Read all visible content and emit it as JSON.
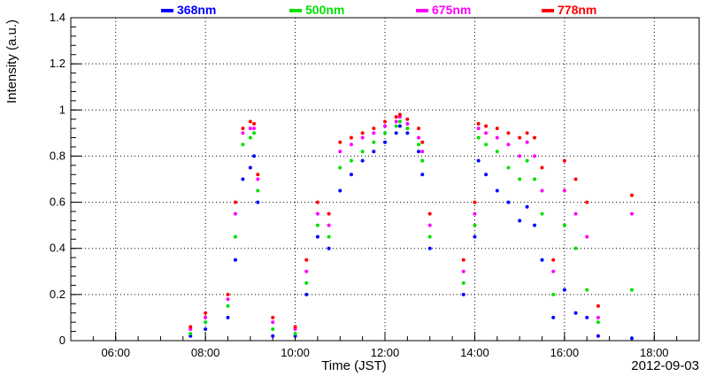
{
  "chart_data": {
    "type": "scatter",
    "xlabel": "Time (JST)",
    "ylabel": "Intensity (a.u.)",
    "date_label": "2012-09-03",
    "grid": true,
    "legend_position": "top",
    "xlim": [
      "05:00",
      "19:00"
    ],
    "ylim": [
      0,
      1.4
    ],
    "x_ticks": [
      "06:00",
      "08:00",
      "10:00",
      "12:00",
      "14:00",
      "16:00",
      "18:00"
    ],
    "y_ticks": [
      "0",
      "0.2",
      "0.4",
      "0.6",
      "0.8",
      "1",
      "1.2",
      "1.4"
    ],
    "series": [
      {
        "name": "368nm",
        "color": "#0000ff",
        "points": [
          [
            "07:40",
            0.02
          ],
          [
            "08:00",
            0.05
          ],
          [
            "08:30",
            0.1
          ],
          [
            "08:40",
            0.35
          ],
          [
            "08:50",
            0.7
          ],
          [
            "09:00",
            0.75
          ],
          [
            "09:05",
            0.8
          ],
          [
            "09:10",
            0.6
          ],
          [
            "09:30",
            0.02
          ],
          [
            "10:00",
            0.02
          ],
          [
            "10:15",
            0.2
          ],
          [
            "10:30",
            0.45
          ],
          [
            "10:45",
            0.4
          ],
          [
            "11:00",
            0.65
          ],
          [
            "11:15",
            0.72
          ],
          [
            "11:30",
            0.78
          ],
          [
            "11:45",
            0.82
          ],
          [
            "12:00",
            0.86
          ],
          [
            "12:15",
            0.9
          ],
          [
            "12:20",
            0.93
          ],
          [
            "12:30",
            0.9
          ],
          [
            "12:45",
            0.82
          ],
          [
            "12:50",
            0.72
          ],
          [
            "13:00",
            0.4
          ],
          [
            "13:45",
            0.2
          ],
          [
            "14:00",
            0.45
          ],
          [
            "14:05",
            0.78
          ],
          [
            "14:15",
            0.72
          ],
          [
            "14:30",
            0.65
          ],
          [
            "14:45",
            0.6
          ],
          [
            "15:00",
            0.52
          ],
          [
            "15:10",
            0.58
          ],
          [
            "15:20",
            0.5
          ],
          [
            "15:30",
            0.35
          ],
          [
            "15:45",
            0.1
          ],
          [
            "16:00",
            0.22
          ],
          [
            "16:15",
            0.12
          ],
          [
            "16:30",
            0.1
          ],
          [
            "16:45",
            0.02
          ],
          [
            "17:30",
            0.01
          ]
        ]
      },
      {
        "name": "500nm",
        "color": "#00e000",
        "points": [
          [
            "07:40",
            0.03
          ],
          [
            "08:00",
            0.08
          ],
          [
            "08:30",
            0.15
          ],
          [
            "08:40",
            0.45
          ],
          [
            "08:50",
            0.85
          ],
          [
            "09:00",
            0.88
          ],
          [
            "09:05",
            0.9
          ],
          [
            "09:10",
            0.65
          ],
          [
            "09:30",
            0.05
          ],
          [
            "10:00",
            0.03
          ],
          [
            "10:15",
            0.25
          ],
          [
            "10:30",
            0.5
          ],
          [
            "10:45",
            0.45
          ],
          [
            "11:00",
            0.75
          ],
          [
            "11:15",
            0.78
          ],
          [
            "11:30",
            0.82
          ],
          [
            "11:45",
            0.86
          ],
          [
            "12:00",
            0.9
          ],
          [
            "12:15",
            0.93
          ],
          [
            "12:20",
            0.95
          ],
          [
            "12:30",
            0.92
          ],
          [
            "12:45",
            0.85
          ],
          [
            "12:50",
            0.78
          ],
          [
            "13:00",
            0.45
          ],
          [
            "13:45",
            0.25
          ],
          [
            "14:00",
            0.5
          ],
          [
            "14:05",
            0.88
          ],
          [
            "14:15",
            0.85
          ],
          [
            "14:30",
            0.82
          ],
          [
            "14:45",
            0.75
          ],
          [
            "15:00",
            0.7
          ],
          [
            "15:10",
            0.78
          ],
          [
            "15:20",
            0.7
          ],
          [
            "15:30",
            0.55
          ],
          [
            "15:45",
            0.2
          ],
          [
            "16:00",
            0.5
          ],
          [
            "16:15",
            0.4
          ],
          [
            "16:30",
            0.22
          ],
          [
            "16:45",
            0.08
          ],
          [
            "17:30",
            0.22
          ]
        ]
      },
      {
        "name": "675nm",
        "color": "#ff00ff",
        "points": [
          [
            "07:40",
            0.05
          ],
          [
            "08:00",
            0.1
          ],
          [
            "08:30",
            0.18
          ],
          [
            "08:40",
            0.55
          ],
          [
            "08:50",
            0.9
          ],
          [
            "09:00",
            0.92
          ],
          [
            "09:05",
            0.92
          ],
          [
            "09:10",
            0.7
          ],
          [
            "09:30",
            0.08
          ],
          [
            "10:00",
            0.05
          ],
          [
            "10:15",
            0.3
          ],
          [
            "10:30",
            0.55
          ],
          [
            "10:45",
            0.5
          ],
          [
            "11:00",
            0.82
          ],
          [
            "11:15",
            0.85
          ],
          [
            "11:30",
            0.88
          ],
          [
            "11:45",
            0.9
          ],
          [
            "12:00",
            0.93
          ],
          [
            "12:15",
            0.95
          ],
          [
            "12:20",
            0.97
          ],
          [
            "12:30",
            0.94
          ],
          [
            "12:45",
            0.88
          ],
          [
            "12:50",
            0.82
          ],
          [
            "13:00",
            0.5
          ],
          [
            "13:45",
            0.3
          ],
          [
            "14:00",
            0.55
          ],
          [
            "14:05",
            0.92
          ],
          [
            "14:15",
            0.9
          ],
          [
            "14:30",
            0.88
          ],
          [
            "14:45",
            0.85
          ],
          [
            "15:00",
            0.8
          ],
          [
            "15:10",
            0.86
          ],
          [
            "15:20",
            0.8
          ],
          [
            "15:30",
            0.65
          ],
          [
            "15:45",
            0.3
          ],
          [
            "16:00",
            0.65
          ],
          [
            "16:15",
            0.55
          ],
          [
            "16:30",
            0.45
          ],
          [
            "16:45",
            0.1
          ],
          [
            "17:30",
            0.55
          ]
        ]
      },
      {
        "name": "778nm",
        "color": "#ff0000",
        "points": [
          [
            "07:40",
            0.06
          ],
          [
            "08:00",
            0.12
          ],
          [
            "08:30",
            0.2
          ],
          [
            "08:40",
            0.6
          ],
          [
            "08:50",
            0.92
          ],
          [
            "09:00",
            0.95
          ],
          [
            "09:05",
            0.94
          ],
          [
            "09:10",
            0.72
          ],
          [
            "09:30",
            0.1
          ],
          [
            "10:00",
            0.06
          ],
          [
            "10:15",
            0.35
          ],
          [
            "10:30",
            0.6
          ],
          [
            "10:45",
            0.55
          ],
          [
            "11:00",
            0.86
          ],
          [
            "11:15",
            0.88
          ],
          [
            "11:30",
            0.9
          ],
          [
            "11:45",
            0.92
          ],
          [
            "12:00",
            0.95
          ],
          [
            "12:15",
            0.97
          ],
          [
            "12:20",
            0.98
          ],
          [
            "12:30",
            0.96
          ],
          [
            "12:45",
            0.92
          ],
          [
            "12:50",
            0.86
          ],
          [
            "13:00",
            0.55
          ],
          [
            "13:45",
            0.35
          ],
          [
            "14:00",
            0.6
          ],
          [
            "14:05",
            0.94
          ],
          [
            "14:15",
            0.93
          ],
          [
            "14:30",
            0.92
          ],
          [
            "14:45",
            0.9
          ],
          [
            "15:00",
            0.88
          ],
          [
            "15:10",
            0.9
          ],
          [
            "15:20",
            0.88
          ],
          [
            "15:30",
            0.75
          ],
          [
            "15:45",
            0.35
          ],
          [
            "16:00",
            0.78
          ],
          [
            "16:15",
            0.7
          ],
          [
            "16:30",
            0.6
          ],
          [
            "16:45",
            0.15
          ],
          [
            "17:30",
            0.63
          ]
        ]
      }
    ]
  }
}
